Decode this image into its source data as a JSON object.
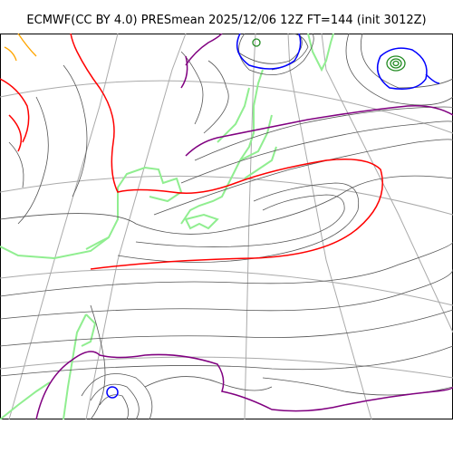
{
  "title": "ECMWF(CC BY 4.0) PRESmean 2025/12/06 12Z FT=144 (init 3012Z)",
  "map": {
    "colors": {
      "background": "#ffffff",
      "graticule": "#aaaaaa",
      "coastline": "#90ee90",
      "isobar_thin": "#555555",
      "isobar_red": "#ff0000",
      "isobar_purple": "#800080",
      "isobar_blue": "#0000ff",
      "isobar_darkgreen": "#228b22",
      "isobar_orange": "#ffa500"
    },
    "features": [
      "high-pressure-center-east",
      "low-pressure-center-northeast",
      "low-pressure-center-southwest",
      "low-pressure-center-north"
    ]
  }
}
